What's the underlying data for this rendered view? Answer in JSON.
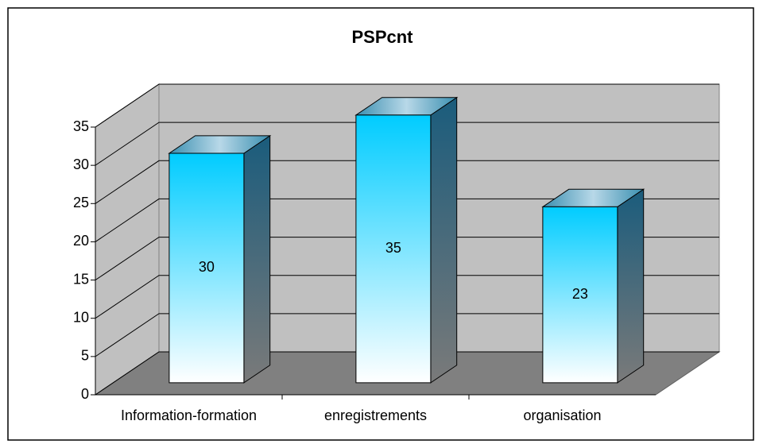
{
  "chart_data": {
    "type": "bar3d",
    "title": "PSPcnt",
    "categories": [
      "Information-formation",
      "enregistrements",
      "organisation"
    ],
    "values": [
      30,
      35,
      23
    ],
    "color": "#00ccff",
    "ylim": [
      0,
      35
    ],
    "yticks": [
      0,
      5,
      10,
      15,
      20,
      25,
      30,
      35
    ],
    "grid": true
  }
}
